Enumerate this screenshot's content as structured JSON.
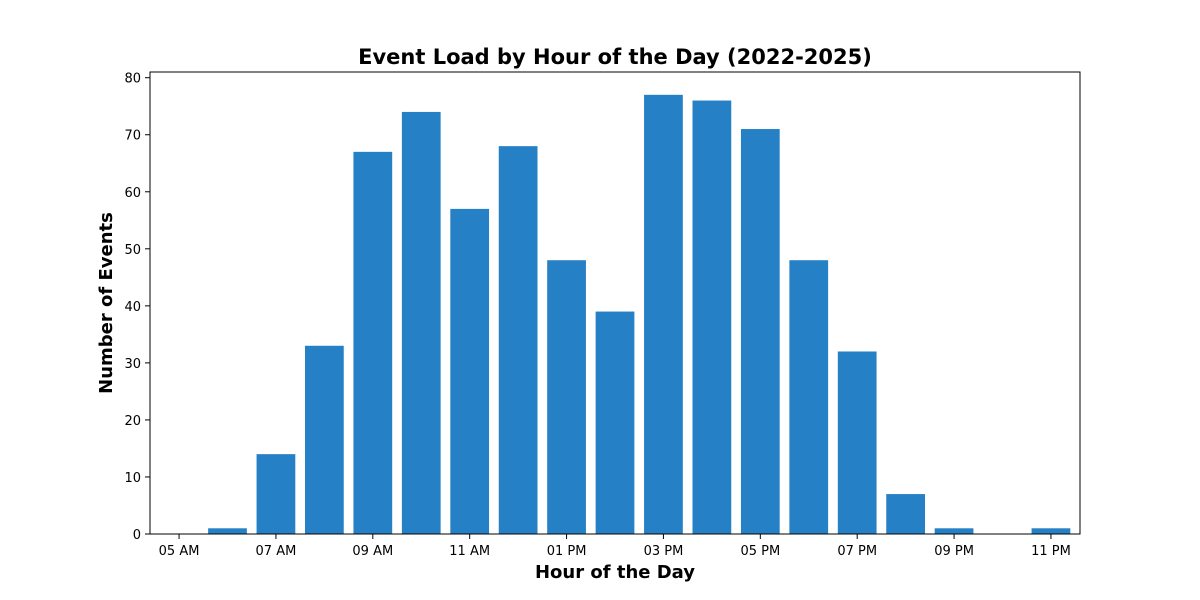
{
  "chart_data": {
    "type": "bar",
    "title": "Event Load by Hour of the Day (2022-2025)",
    "xlabel": "Hour of the Day",
    "ylabel": "Number of Events",
    "x": [
      6,
      7,
      8,
      9,
      10,
      11,
      12,
      13,
      14,
      15,
      16,
      17,
      18,
      19,
      20,
      21,
      23
    ],
    "values": [
      1,
      14,
      33,
      67,
      74,
      57,
      68,
      48,
      39,
      77,
      76,
      71,
      48,
      32,
      7,
      1,
      1
    ],
    "xlim": [
      4.4,
      23.6
    ],
    "ylim": [
      0,
      81
    ],
    "x_ticks": [
      5,
      7,
      9,
      11,
      13,
      15,
      17,
      19,
      21,
      23
    ],
    "x_tick_labels": [
      "05 AM",
      "07 AM",
      "09 AM",
      "11 AM",
      "01 PM",
      "03 PM",
      "05 PM",
      "07 PM",
      "09 PM",
      "11 PM"
    ],
    "y_ticks": [
      0,
      10,
      20,
      30,
      40,
      50,
      60,
      70,
      80
    ],
    "bar_color": "#2680c6",
    "grid": false,
    "legend": "none"
  }
}
